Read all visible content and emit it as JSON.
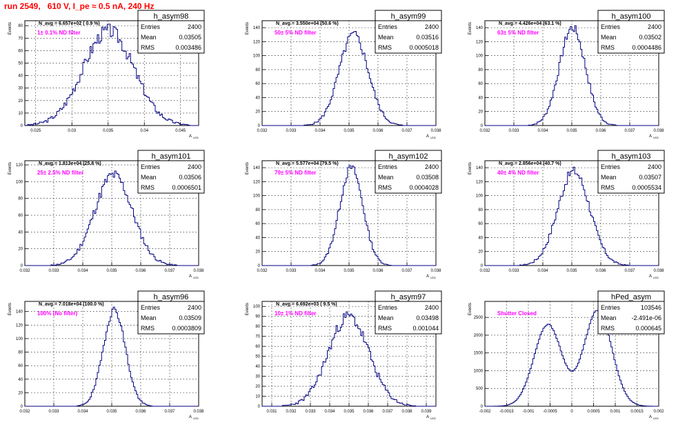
{
  "run_title": "run 2549,   610 V, I_pe ≈ 0.5 nA, 240 Hz",
  "colors": {
    "histogram": "#000080",
    "annotation": "#ff00ff",
    "title": "#ff0000",
    "grid": "#000000"
  },
  "chart_data": [
    {
      "type": "histogram",
      "title": "h_asym98",
      "ylabel": "Events",
      "xlabel": "A_LED",
      "navg": "N_avg = 6.657e+02 ( 0.9 %)",
      "filter": "1± 0.1% ND filter",
      "stats": {
        "entries": "2400",
        "mean": "0.03505",
        "rms": "0.003486"
      },
      "stat_labels": {
        "entries": "Entries",
        "mean": "Mean",
        "rms": "RMS"
      },
      "xlim": [
        0.0235,
        0.0475
      ],
      "ylim": [
        0,
        84
      ],
      "mean": 0.03505,
      "sigma": 0.003486,
      "peak": 76,
      "nbins": 120,
      "seed": 3,
      "noise": 0.22,
      "xticks": [
        0.025,
        0.03,
        0.035,
        0.04,
        0.045
      ],
      "xticklabels": [
        "0.025",
        "0.03",
        "0.035",
        "0.04",
        "0.045"
      ],
      "yticks": [
        0,
        10,
        20,
        30,
        40,
        50,
        60,
        70,
        80
      ],
      "yticklabels": [
        "0",
        "10",
        "20",
        "30",
        "40",
        "50",
        "60",
        "70",
        "80"
      ]
    },
    {
      "type": "histogram",
      "title": "h_asym99",
      "ylabel": "Events",
      "xlabel": "A_LED",
      "navg": "N_avg = 3.550e+04 (50.6 %)",
      "filter": "50± 5% ND filter",
      "stats": {
        "entries": "2400",
        "mean": "0.03516",
        "rms": "0.0005018"
      },
      "stat_labels": {
        "entries": "Entries",
        "mean": "Mean",
        "rms": "RMS"
      },
      "xlim": [
        0.032,
        0.038
      ],
      "ylim": [
        0,
        150
      ],
      "mean": 0.03516,
      "sigma": 0.0005018,
      "peak": 130,
      "nbins": 120,
      "seed": 5,
      "noise": 0.15,
      "xticks": [
        0.032,
        0.033,
        0.034,
        0.035,
        0.036,
        0.037,
        0.038
      ],
      "xticklabels": [
        "0.032",
        "0.033",
        "0.034",
        "0.035",
        "0.036",
        "0.037",
        "0.038"
      ],
      "yticks": [
        0,
        20,
        40,
        60,
        80,
        100,
        120,
        140
      ],
      "yticklabels": [
        "0",
        "20",
        "40",
        "60",
        "80",
        "100",
        "120",
        "140"
      ]
    },
    {
      "type": "histogram",
      "title": "h_asym100",
      "ylabel": "Events",
      "xlabel": "A_LED",
      "navg": "N_avg = 4.426e+04 (63.1 %)",
      "filter": "63± 5% ND filter",
      "stats": {
        "entries": "2400",
        "mean": "0.03502",
        "rms": "0.0004486"
      },
      "stat_labels": {
        "entries": "Entries",
        "mean": "Mean",
        "rms": "RMS"
      },
      "xlim": [
        0.032,
        0.038
      ],
      "ylim": [
        0,
        150
      ],
      "mean": 0.03502,
      "sigma": 0.0004486,
      "peak": 140,
      "nbins": 120,
      "seed": 7,
      "noise": 0.14,
      "xticks": [
        0.032,
        0.033,
        0.034,
        0.035,
        0.036,
        0.037,
        0.038
      ],
      "xticklabels": [
        "0.032",
        "0.033",
        "0.034",
        "0.035",
        "0.036",
        "0.037",
        "0.038"
      ],
      "yticks": [
        0,
        20,
        40,
        60,
        80,
        100,
        120,
        140
      ],
      "yticklabels": [
        "0",
        "20",
        "40",
        "60",
        "80",
        "100",
        "120",
        "140"
      ]
    },
    {
      "type": "histogram",
      "title": "h_asym101",
      "ylabel": "Events",
      "xlabel": "A_LED",
      "navg": "N_avg = 1.813e+04 (25.8 %)",
      "filter": "25± 2.5% ND filter",
      "stats": {
        "entries": "2400",
        "mean": "0.03506",
        "rms": "0.0006501"
      },
      "stat_labels": {
        "entries": "Entries",
        "mean": "Mean",
        "rms": "RMS"
      },
      "xlim": [
        0.032,
        0.038
      ],
      "ylim": [
        0,
        125
      ],
      "mean": 0.03506,
      "sigma": 0.0006501,
      "peak": 108,
      "nbins": 120,
      "seed": 11,
      "noise": 0.18,
      "xticks": [
        0.032,
        0.033,
        0.034,
        0.035,
        0.036,
        0.037,
        0.038
      ],
      "xticklabels": [
        "0.032",
        "0.033",
        "0.034",
        "0.035",
        "0.036",
        "0.037",
        "0.038"
      ],
      "yticks": [
        0,
        20,
        40,
        60,
        80,
        100,
        120
      ],
      "yticklabels": [
        "0",
        "20",
        "40",
        "60",
        "80",
        "100",
        "120"
      ]
    },
    {
      "type": "histogram",
      "title": "h_asym102",
      "ylabel": "Events",
      "xlabel": "A_LED",
      "navg": "N_avg = 5.577e+04 (79.5 %)",
      "filter": "79± 5% ND filter",
      "stats": {
        "entries": "2400",
        "mean": "0.03508",
        "rms": "0.0004028"
      },
      "stat_labels": {
        "entries": "Entries",
        "mean": "Mean",
        "rms": "RMS"
      },
      "xlim": [
        0.032,
        0.038
      ],
      "ylim": [
        0,
        150
      ],
      "mean": 0.03508,
      "sigma": 0.0004028,
      "peak": 140,
      "nbins": 120,
      "seed": 13,
      "noise": 0.12,
      "xticks": [
        0.032,
        0.033,
        0.034,
        0.035,
        0.036,
        0.037,
        0.038
      ],
      "xticklabels": [
        "0.032",
        "0.033",
        "0.034",
        "0.035",
        "0.036",
        "0.037",
        "0.038"
      ],
      "yticks": [
        0,
        20,
        40,
        60,
        80,
        100,
        120,
        140
      ],
      "yticklabels": [
        "0",
        "20",
        "40",
        "60",
        "80",
        "100",
        "120",
        "140"
      ]
    },
    {
      "type": "histogram",
      "title": "h_asym103",
      "ylabel": "Events",
      "xlabel": "A_LED",
      "navg": "N_avg = 2.856e+04 (40.7 %)",
      "filter": "40± 4% ND filter",
      "stats": {
        "entries": "2400",
        "mean": "0.03507",
        "rms": "0.0005534"
      },
      "stat_labels": {
        "entries": "Entries",
        "mean": "Mean",
        "rms": "RMS"
      },
      "xlim": [
        0.032,
        0.038
      ],
      "ylim": [
        0,
        150
      ],
      "mean": 0.03507,
      "sigma": 0.0005534,
      "peak": 135,
      "nbins": 120,
      "seed": 17,
      "noise": 0.15,
      "xticks": [
        0.032,
        0.033,
        0.034,
        0.035,
        0.036,
        0.037,
        0.038
      ],
      "xticklabels": [
        "0.032",
        "0.033",
        "0.034",
        "0.035",
        "0.036",
        "0.037",
        "0.038"
      ],
      "yticks": [
        0,
        20,
        40,
        60,
        80,
        100,
        120,
        140
      ],
      "yticklabels": [
        "0",
        "20",
        "40",
        "60",
        "80",
        "100",
        "120",
        "140"
      ]
    },
    {
      "type": "histogram",
      "title": "h_asym96",
      "ylabel": "Events",
      "xlabel": "A_LED",
      "navg": "N_avg = 7.018e+04 (100.0 %)",
      "filter": "100% (No filter)",
      "stats": {
        "entries": "2400",
        "mean": "0.03509",
        "rms": "0.0003809"
      },
      "stat_labels": {
        "entries": "Entries",
        "mean": "Mean",
        "rms": "RMS"
      },
      "xlim": [
        0.032,
        0.038
      ],
      "ylim": [
        0,
        155
      ],
      "mean": 0.03509,
      "sigma": 0.0003809,
      "peak": 143,
      "nbins": 120,
      "seed": 19,
      "noise": 0.1,
      "xticks": [
        0.032,
        0.033,
        0.034,
        0.035,
        0.036,
        0.037,
        0.038
      ],
      "xticklabels": [
        "0.032",
        "0.033",
        "0.034",
        "0.035",
        "0.036",
        "0.037",
        "0.038"
      ],
      "yticks": [
        0,
        20,
        40,
        60,
        80,
        100,
        120,
        140
      ],
      "yticklabels": [
        "0",
        "20",
        "40",
        "60",
        "80",
        "100",
        "120",
        "140"
      ]
    },
    {
      "type": "histogram",
      "title": "h_asym97",
      "ylabel": "Events",
      "xlabel": "A_LED",
      "navg": "N_avg = 6.692e+03 ( 9.5 %)",
      "filter": "10± 1% ND filter",
      "stats": {
        "entries": "2400",
        "mean": "0.03498",
        "rms": "0.001044"
      },
      "stat_labels": {
        "entries": "Entries",
        "mean": "Mean",
        "rms": "RMS"
      },
      "xlim": [
        0.0305,
        0.0395
      ],
      "ylim": [
        0,
        105
      ],
      "mean": 0.03498,
      "sigma": 0.001044,
      "peak": 90,
      "nbins": 120,
      "seed": 23,
      "noise": 0.2,
      "xticks": [
        0.031,
        0.032,
        0.033,
        0.034,
        0.035,
        0.036,
        0.037,
        0.038,
        0.039
      ],
      "xticklabels": [
        "0.031",
        "0.032",
        "0.033",
        "0.034",
        "0.035",
        "0.036",
        "0.037",
        "0.038",
        "0.039"
      ],
      "yticks": [
        0,
        10,
        20,
        30,
        40,
        50,
        60,
        70,
        80,
        90,
        100
      ],
      "yticklabels": [
        "0",
        "10",
        "20",
        "30",
        "40",
        "50",
        "60",
        "70",
        "80",
        "90",
        "100"
      ]
    },
    {
      "type": "histogram",
      "title": "hPed_asym",
      "ylabel": "Events",
      "xlabel": "A_LED",
      "navg": "",
      "filter": "Shutter Closed",
      "stats": {
        "entries": "103546",
        "mean": "-2.491e-06",
        "rms": "0.000645"
      },
      "stat_labels": {
        "entries": "Entries",
        "mean": "Mean",
        "rms": "RMS"
      },
      "xlim": [
        -0.002,
        0.002
      ],
      "ylim": [
        0,
        2950
      ],
      "bimodal": true,
      "peaks": [
        -0.00055,
        0.0006
      ],
      "sigma": 0.00032,
      "peak": 2300,
      "peak2": 2700,
      "nbins": 120,
      "seed": 29,
      "noise": 0.02,
      "xticks": [
        -0.002,
        -0.0015,
        -0.001,
        -0.0005,
        0,
        0.0005,
        0.001,
        0.0015,
        0.002
      ],
      "xticklabels": [
        "-0.002",
        "-0.0015",
        "-0.001",
        "-0.0005",
        "0",
        "0.0005",
        "0.001",
        "0.0015",
        "0.002"
      ],
      "yticks": [
        0,
        500,
        1000,
        1500,
        2000,
        2500
      ],
      "yticklabels": [
        "0",
        "500",
        "1000",
        "1500",
        "2000",
        "2500"
      ]
    }
  ]
}
